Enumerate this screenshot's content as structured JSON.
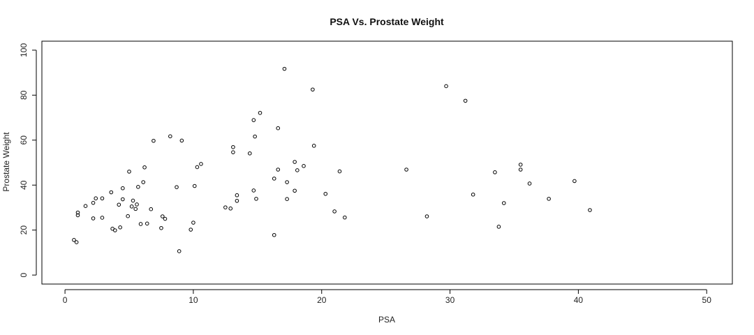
{
  "chart_data": {
    "type": "scatter",
    "title": "PSA Vs. Prostate Weight",
    "xlabel": "PSA",
    "ylabel": "Prostate Weight",
    "xlim": [
      -1.8,
      52
    ],
    "ylim": [
      -4,
      104
    ],
    "xticks": [
      0,
      10,
      20,
      30,
      40,
      50
    ],
    "yticks": [
      0,
      20,
      40,
      60,
      80,
      100
    ],
    "grid": false,
    "legend": "none",
    "marker": "open-circle",
    "colors": {
      "marker": "#000000",
      "axis": "#000000",
      "background": "#ffffff"
    },
    "points": [
      [
        0.7,
        15.6
      ],
      [
        0.9,
        14.6
      ],
      [
        1.0,
        26.6
      ],
      [
        1.0,
        27.8
      ],
      [
        1.6,
        30.7
      ],
      [
        2.2,
        32.1
      ],
      [
        2.2,
        25.2
      ],
      [
        2.4,
        34.1
      ],
      [
        2.9,
        25.5
      ],
      [
        2.9,
        34.1
      ],
      [
        3.6,
        36.8
      ],
      [
        3.7,
        20.6
      ],
      [
        3.9,
        19.9
      ],
      [
        4.2,
        31.3
      ],
      [
        4.3,
        21.2
      ],
      [
        4.5,
        33.7
      ],
      [
        4.5,
        38.6
      ],
      [
        4.9,
        26.2
      ],
      [
        5.0,
        46.0
      ],
      [
        5.2,
        30.5
      ],
      [
        5.3,
        33.1
      ],
      [
        5.5,
        29.4
      ],
      [
        5.6,
        31.4
      ],
      [
        5.7,
        39.2
      ],
      [
        5.9,
        22.7
      ],
      [
        6.1,
        41.3
      ],
      [
        6.2,
        47.9
      ],
      [
        6.4,
        22.9
      ],
      [
        6.7,
        29.3
      ],
      [
        6.9,
        59.7
      ],
      [
        7.5,
        20.9
      ],
      [
        7.6,
        26.1
      ],
      [
        7.8,
        25.0
      ],
      [
        8.2,
        61.7
      ],
      [
        8.7,
        39.1
      ],
      [
        8.9,
        10.6
      ],
      [
        9.1,
        59.8
      ],
      [
        9.8,
        20.2
      ],
      [
        10.0,
        23.3
      ],
      [
        10.1,
        39.6
      ],
      [
        10.3,
        48.0
      ],
      [
        10.6,
        49.4
      ],
      [
        12.5,
        30.1
      ],
      [
        12.9,
        29.6
      ],
      [
        13.1,
        54.6
      ],
      [
        13.1,
        56.9
      ],
      [
        13.4,
        35.5
      ],
      [
        13.4,
        33.0
      ],
      [
        14.4,
        54.1
      ],
      [
        14.7,
        68.9
      ],
      [
        14.7,
        37.6
      ],
      [
        14.8,
        61.6
      ],
      [
        14.9,
        33.9
      ],
      [
        15.2,
        72.1
      ],
      [
        16.3,
        42.9
      ],
      [
        16.3,
        17.8
      ],
      [
        16.6,
        65.3
      ],
      [
        16.6,
        46.9
      ],
      [
        17.1,
        91.7
      ],
      [
        17.3,
        41.3
      ],
      [
        17.3,
        33.8
      ],
      [
        17.9,
        37.5
      ],
      [
        17.9,
        50.3
      ],
      [
        18.1,
        46.6
      ],
      [
        18.6,
        48.5
      ],
      [
        19.3,
        82.5
      ],
      [
        19.4,
        57.5
      ],
      [
        20.3,
        36.1
      ],
      [
        21.0,
        28.3
      ],
      [
        21.4,
        46.1
      ],
      [
        21.8,
        25.6
      ],
      [
        26.6,
        46.9
      ],
      [
        28.2,
        26.1
      ],
      [
        29.7,
        84.0
      ],
      [
        31.2,
        77.5
      ],
      [
        31.8,
        35.8
      ],
      [
        33.5,
        45.7
      ],
      [
        33.8,
        21.5
      ],
      [
        34.2,
        32.0
      ],
      [
        35.5,
        46.9
      ],
      [
        35.5,
        49.1
      ],
      [
        36.2,
        40.7
      ],
      [
        37.7,
        33.9
      ],
      [
        39.7,
        41.8
      ],
      [
        40.9,
        28.9
      ]
    ]
  }
}
